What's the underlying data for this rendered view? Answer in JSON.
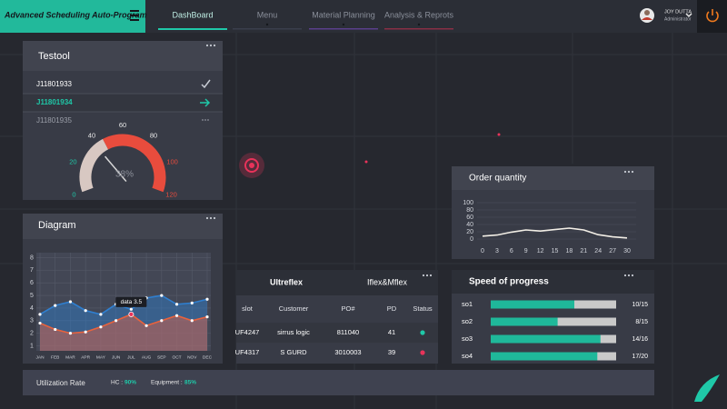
{
  "header": {
    "title": "Advanced Scheduling Auto-Program",
    "nav": [
      "DashBoard",
      "Menu",
      "Material Planning",
      "Analysis & Reprots"
    ],
    "nav_colors": [
      "#1fc8a8",
      "#3a3e4c",
      "#5a3f8c",
      "#8a2f45"
    ],
    "active": 0,
    "user": {
      "name": "JOY DUTTA",
      "role": "Administrator"
    }
  },
  "testool": {
    "title": "Testool",
    "items": [
      "J11801933",
      "J11801934",
      "J11801935"
    ],
    "gauge": {
      "type": "gauge",
      "values": [
        38
      ],
      "value_labels": [
        "38%"
      ],
      "lim": [
        0,
        120
      ],
      "ticks": [
        0,
        20,
        40,
        60,
        80,
        100,
        120
      ],
      "tick_colors": [
        "#1fc8a8",
        "#1fc8a8",
        "#e8e8e8",
        "#e8e8e8",
        "#e8e8e8",
        "#e84c3d",
        "#e84c3d"
      ],
      "bands": [
        {
          "from": 0,
          "to": 45,
          "color": "#d8c8c2"
        },
        {
          "from": 45,
          "to": 120,
          "color": "#e84c3d"
        }
      ]
    }
  },
  "diagram": {
    "title": "Diagram",
    "chart_data": {
      "type": "area",
      "categories": [
        "JAN",
        "FEB",
        "MAR",
        "APR",
        "MAY",
        "JUN",
        "JUL",
        "AUG",
        "SEP",
        "OCT",
        "NOV",
        "DEC"
      ],
      "series": [
        {
          "color": "#2f7fd0",
          "values": [
            3.5,
            4.2,
            4.5,
            3.8,
            3.5,
            4.3,
            3.9,
            4.8,
            5.0,
            4.3,
            4.4,
            4.7
          ]
        },
        {
          "color": "#e8623d",
          "values": [
            2.8,
            2.3,
            2.0,
            2.1,
            2.5,
            3.0,
            3.5,
            2.6,
            3.0,
            3.4,
            3.0,
            3.3
          ]
        }
      ],
      "ylim": [
        0.6,
        8.4
      ],
      "yticks": [
        1,
        2,
        3,
        4,
        5,
        6,
        7,
        8
      ],
      "grid": true,
      "annotation": {
        "text": "data 3.5",
        "series": 1,
        "index": 6
      }
    }
  },
  "order_quantity": {
    "title": "Order quantity",
    "chart_data": {
      "type": "line",
      "color": "#f2eee6",
      "x": [
        0,
        3,
        6,
        9,
        12,
        15,
        18,
        21,
        24,
        27,
        30
      ],
      "values": [
        8,
        11,
        19,
        25,
        22,
        26,
        30,
        25,
        12,
        6,
        3
      ],
      "xlim": [
        0,
        30
      ],
      "ylim": [
        0,
        100
      ],
      "xticks": [
        0,
        3,
        6,
        9,
        12,
        15,
        18,
        21,
        24,
        27,
        30
      ],
      "yticks": [
        0,
        20,
        40,
        60,
        80,
        100
      ]
    }
  },
  "table": {
    "groups": [
      "Ultreflex",
      "Iflex&Mflex"
    ],
    "columns": [
      "slot",
      "Customer",
      "PO#",
      "PD",
      "Status"
    ],
    "rows": [
      [
        "UF4247",
        "sirrus logic",
        "811040",
        "41"
      ],
      [
        "UF4317",
        "S GURD",
        "3010003",
        "39"
      ]
    ],
    "status_colors": [
      "#1fc8a8",
      "#e8335a"
    ]
  },
  "speed": {
    "title": "Speed of progress",
    "color": "#1fb89a",
    "rest_color": "#c9c9c9",
    "items": [
      {
        "name": "so1",
        "done": 10,
        "total": 15,
        "label": "10/15"
      },
      {
        "name": "so2",
        "done": 8,
        "total": 15,
        "label": "8/15"
      },
      {
        "name": "so3",
        "done": 14,
        "total": 16,
        "label": "14/16"
      },
      {
        "name": "so4",
        "done": 17,
        "total": 20,
        "label": "17/20"
      }
    ]
  },
  "utilization": {
    "title": "Utilization Rate",
    "hc_label": "HC :",
    "hc": "90%",
    "equipment_label": "Equipment :",
    "equipment": "85%"
  }
}
